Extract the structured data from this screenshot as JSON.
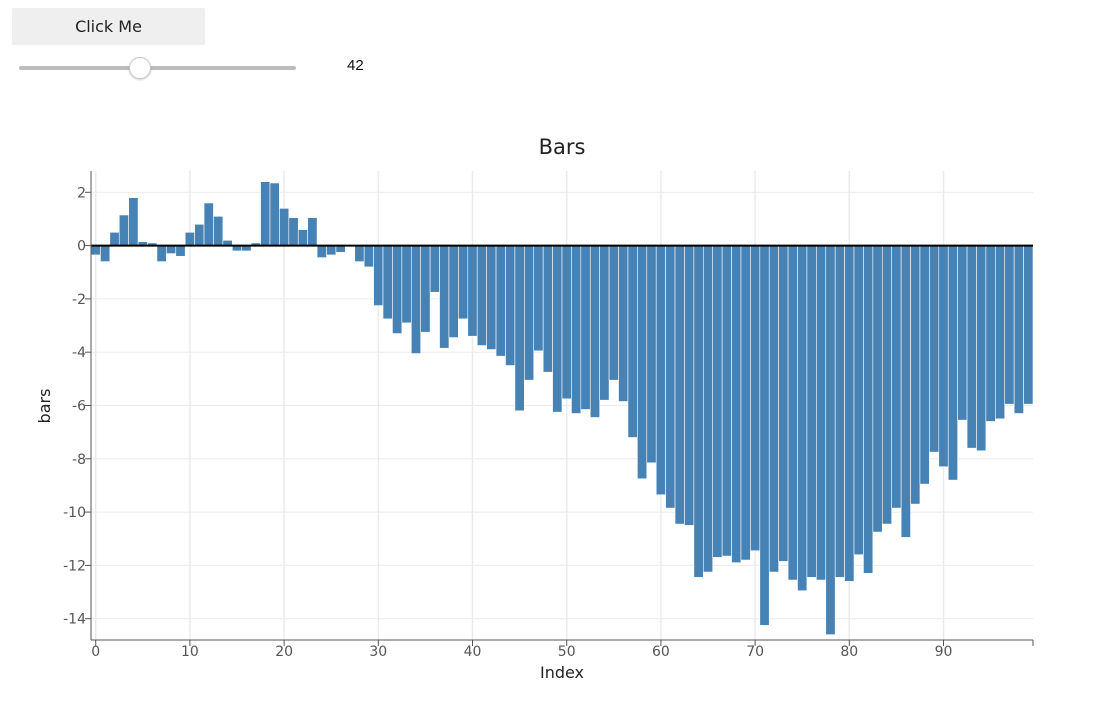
{
  "controls": {
    "button_label": "Click Me",
    "slider": {
      "value": 42,
      "min": 0,
      "max": 100,
      "display": "42"
    }
  },
  "chart_data": {
    "type": "bar",
    "title": "Bars",
    "xlabel": "Index",
    "ylabel": "bars",
    "xlim": [
      -0.5,
      99.5
    ],
    "ylim": [
      -14.8,
      2.8
    ],
    "xticks": [
      0,
      10,
      20,
      30,
      40,
      50,
      60,
      70,
      80,
      90
    ],
    "yticks": [
      2,
      0,
      -2,
      -4,
      -6,
      -8,
      -10,
      -12,
      -14
    ],
    "grid": true,
    "bar_color": "#4682b4",
    "x": [
      0,
      1,
      2,
      3,
      4,
      5,
      6,
      7,
      8,
      9,
      10,
      11,
      12,
      13,
      14,
      15,
      16,
      17,
      18,
      19,
      20,
      21,
      22,
      23,
      24,
      25,
      26,
      27,
      28,
      29,
      30,
      31,
      32,
      33,
      34,
      35,
      36,
      37,
      38,
      39,
      40,
      41,
      42,
      43,
      44,
      45,
      46,
      47,
      48,
      49,
      50,
      51,
      52,
      53,
      54,
      55,
      56,
      57,
      58,
      59,
      60,
      61,
      62,
      63,
      64,
      65,
      66,
      67,
      68,
      69,
      70,
      71,
      72,
      73,
      74,
      75,
      76,
      77,
      78,
      79,
      80,
      81,
      82,
      83,
      84,
      85,
      86,
      87,
      88,
      89,
      90,
      91,
      92,
      93,
      94,
      95,
      96,
      97,
      98,
      99
    ],
    "values": [
      -0.35,
      -0.6,
      0.5,
      1.15,
      1.8,
      0.15,
      0.1,
      -0.6,
      -0.3,
      -0.4,
      0.5,
      0.8,
      1.6,
      1.1,
      0.2,
      -0.2,
      -0.2,
      0.1,
      2.4,
      2.35,
      1.4,
      1.05,
      0.6,
      1.05,
      -0.45,
      -0.35,
      -0.25,
      -0.02,
      -0.6,
      -0.8,
      -2.25,
      -2.75,
      -3.3,
      -2.9,
      -4.05,
      -3.25,
      -1.75,
      -3.85,
      -3.45,
      -2.75,
      -3.4,
      -3.75,
      -3.9,
      -4.15,
      -4.5,
      -6.2,
      -5.05,
      -3.95,
      -4.75,
      -6.25,
      -5.75,
      -6.3,
      -6.15,
      -6.45,
      -5.8,
      -5.05,
      -5.85,
      -7.2,
      -8.75,
      -8.15,
      -9.35,
      -9.85,
      -10.45,
      -10.5,
      -12.45,
      -12.25,
      -11.7,
      -11.65,
      -11.9,
      -11.8,
      -11.45,
      -14.25,
      -12.25,
      -11.85,
      -12.55,
      -12.95,
      -12.45,
      -12.55,
      -14.6,
      -12.45,
      -12.6,
      -11.6,
      -12.3,
      -10.75,
      -10.45,
      -9.85,
      -10.95,
      -9.7,
      -8.95,
      -7.75,
      -8.3,
      -8.8,
      -6.55,
      -7.6,
      -7.7,
      -6.6,
      -6.5,
      -5.95,
      -6.3,
      -5.95
    ]
  }
}
